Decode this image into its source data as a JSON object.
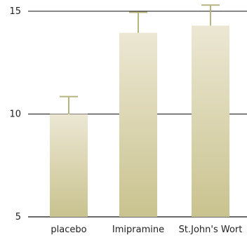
{
  "chart_data": {
    "type": "bar",
    "categories": [
      "placebo",
      "Imipramine",
      "St.John's Wort"
    ],
    "values": [
      10.0,
      13.95,
      14.3
    ],
    "error_upper": [
      10.85,
      14.95,
      15.3
    ],
    "ylim": [
      5,
      15
    ],
    "yticks": [
      5,
      10,
      15
    ],
    "grid": true,
    "colors": {
      "bar_top": "#ece7d3",
      "bar_bottom": "#c9c38f",
      "error_bar": "#b8b480",
      "axis": "#111111",
      "gridline": "#111111"
    }
  }
}
